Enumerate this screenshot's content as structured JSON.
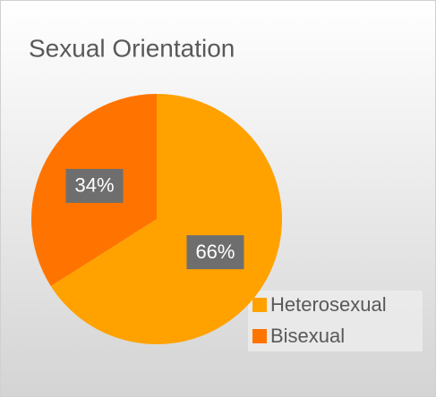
{
  "chart_data": {
    "type": "pie",
    "title": "Sexual Orientation",
    "categories": [
      "Heterosexual",
      "Bisexual"
    ],
    "values": [
      66,
      34
    ],
    "value_labels": [
      "66%",
      "34%"
    ],
    "colors": [
      "#ffa200",
      "#ff7400"
    ],
    "legend": "bottom-right"
  }
}
